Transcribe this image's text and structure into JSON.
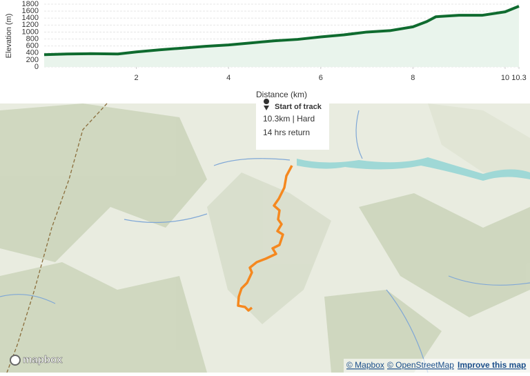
{
  "chart_data": {
    "type": "area",
    "x_label": "Distance (km)",
    "y_label": "Elevation (m)",
    "x": [
      0,
      0.5,
      1,
      1.6,
      2,
      2.5,
      3,
      3.5,
      4,
      4.5,
      5,
      5.5,
      6,
      6.5,
      7,
      7.5,
      8,
      8.3,
      8.5,
      9,
      9.5,
      10,
      10.3
    ],
    "values": [
      350,
      370,
      380,
      370,
      430,
      490,
      540,
      590,
      630,
      690,
      750,
      790,
      860,
      920,
      1000,
      1040,
      1150,
      1300,
      1440,
      1480,
      1480,
      1580,
      1740
    ],
    "color": "#0f6b2f",
    "fill": "#e9f4ec",
    "xlim": [
      0,
      10.3
    ],
    "xticks": [
      2,
      4,
      6,
      8,
      10,
      10.3
    ],
    "ylim": [
      0,
      1800
    ],
    "yticks": [
      0,
      200,
      400,
      600,
      800,
      1000,
      1200,
      1400,
      1600,
      1800
    ],
    "grid": true
  },
  "map": {
    "popup": {
      "title": "Start of track",
      "line1": "10.3km | Hard",
      "line2": "14 hrs return"
    },
    "logo": "mapbox",
    "attribution": [
      "© Mapbox",
      "© OpenStreetMap",
      "Improve this map"
    ]
  }
}
